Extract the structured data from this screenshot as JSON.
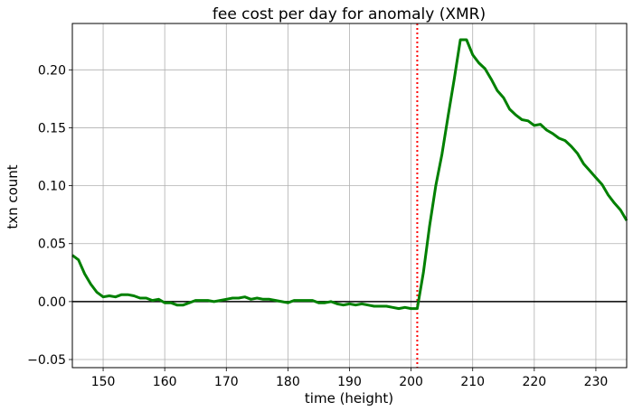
{
  "chart_data": {
    "type": "line",
    "title": "fee cost per day for anomaly (XMR)",
    "xlabel": "time (height)",
    "ylabel": "txn count",
    "xlim": [
      145,
      235
    ],
    "ylim": [
      -0.057,
      0.24
    ],
    "xticks": [
      150,
      160,
      170,
      180,
      190,
      200,
      210,
      220,
      230
    ],
    "yticks": [
      -0.05,
      0.0,
      0.05,
      0.1,
      0.15,
      0.2
    ],
    "ytick_labels": [
      "−0.05",
      "0.00",
      "0.05",
      "0.10",
      "0.15",
      "0.20"
    ],
    "grid": true,
    "reference_lines": {
      "horizontal_y": 0,
      "horizontal_color": "#000000",
      "vertical_x": 201,
      "vertical_color": "#ff0000",
      "vertical_style": "dotted"
    },
    "series": [
      {
        "color": "#008000",
        "x": [
          145,
          146,
          147,
          148,
          149,
          150,
          151,
          152,
          153,
          154,
          155,
          156,
          157,
          158,
          159,
          160,
          161,
          162,
          163,
          164,
          165,
          166,
          167,
          168,
          169,
          170,
          171,
          172,
          173,
          174,
          175,
          176,
          177,
          178,
          179,
          180,
          181,
          182,
          183,
          184,
          185,
          186,
          187,
          188,
          189,
          190,
          191,
          192,
          193,
          194,
          195,
          196,
          197,
          198,
          199,
          200,
          201,
          202,
          203,
          204,
          205,
          206,
          207,
          208,
          209,
          210,
          211,
          212,
          213,
          214,
          215,
          216,
          217,
          218,
          219,
          220,
          221,
          222,
          223,
          224,
          225,
          226,
          227,
          228,
          229,
          230,
          231,
          232,
          233,
          234,
          235
        ],
        "y": [
          0.04,
          0.036,
          0.024,
          0.015,
          0.008,
          0.004,
          0.005,
          0.004,
          0.006,
          0.006,
          0.005,
          0.003,
          0.003,
          0.001,
          0.002,
          -0.001,
          -0.001,
          -0.003,
          -0.003,
          -0.001,
          0.001,
          0.001,
          0.001,
          0.0,
          0.001,
          0.002,
          0.003,
          0.003,
          0.004,
          0.002,
          0.003,
          0.002,
          0.002,
          0.001,
          0.0,
          -0.001,
          0.001,
          0.001,
          0.001,
          0.001,
          -0.001,
          -0.001,
          0.0,
          -0.002,
          -0.003,
          -0.002,
          -0.003,
          -0.002,
          -0.003,
          -0.004,
          -0.004,
          -0.004,
          -0.005,
          -0.006,
          -0.005,
          -0.006,
          -0.006,
          0.025,
          0.065,
          0.1,
          0.127,
          0.16,
          0.192,
          0.226,
          0.226,
          0.213,
          0.206,
          0.201,
          0.192,
          0.182,
          0.176,
          0.166,
          0.161,
          0.157,
          0.156,
          0.152,
          0.153,
          0.148,
          0.145,
          0.141,
          0.139,
          0.134,
          0.128,
          0.119,
          0.113,
          0.107,
          0.101,
          0.092,
          0.085,
          0.079,
          0.07
        ]
      }
    ]
  }
}
